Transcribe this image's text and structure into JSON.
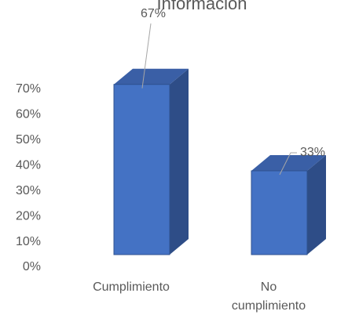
{
  "chart_data": {
    "type": "bar",
    "title": "Información",
    "categories": [
      "Cumplimiento",
      "No cumplimiento"
    ],
    "values": [
      67,
      33
    ],
    "value_labels": [
      "67%",
      "33%"
    ],
    "color": "#4472c4",
    "ylim": [
      0,
      70
    ],
    "yticks": [
      {
        "value": 0,
        "label": "0%"
      },
      {
        "value": 10,
        "label": "10%"
      },
      {
        "value": 20,
        "label": "20%"
      },
      {
        "value": 30,
        "label": "30%"
      },
      {
        "value": 40,
        "label": "40%"
      },
      {
        "value": 50,
        "label": "50%"
      },
      {
        "value": 60,
        "label": "60%"
      },
      {
        "value": 70,
        "label": "70%"
      }
    ]
  }
}
